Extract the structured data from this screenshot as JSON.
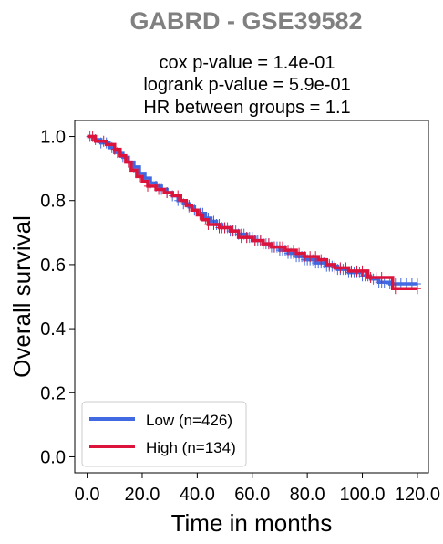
{
  "colors": {
    "title": "#808080",
    "text": "#000000",
    "low_series": "#4169E1",
    "high_series": "#DC143C",
    "axes": "#000000",
    "background": "#FFFFFF"
  },
  "chart_data": {
    "type": "line",
    "chart_kind": "kaplan-meier step plot with censor marks",
    "title": "GABRD - GSE39582",
    "subtitle_lines": [
      "cox p-value = 1.4e-01",
      "logrank p-value = 5.9e-01",
      "HR between groups = 1.1"
    ],
    "xlabel": "Time in months",
    "ylabel": "Overall survival",
    "xlim": [
      -4.5,
      124
    ],
    "ylim": [
      -0.05,
      1.05
    ],
    "xticks": [
      0,
      20,
      40,
      60,
      80,
      100,
      120
    ],
    "xtick_labels": [
      "0.0",
      "20.0",
      "40.0",
      "60.0",
      "80.0",
      "100.0",
      "120.0"
    ],
    "yticks": [
      0.0,
      0.2,
      0.4,
      0.6,
      0.8,
      1.0
    ],
    "ytick_labels": [
      "0.0",
      "0.2",
      "0.4",
      "0.6",
      "0.8",
      "1.0"
    ],
    "grid": false,
    "legend_position": "lower-left",
    "series": [
      {
        "name": "Low (n=426)",
        "color": "#4169E1",
        "step_points": [
          [
            0,
            1.0
          ],
          [
            2,
            0.99
          ],
          [
            5,
            0.98
          ],
          [
            8,
            0.965
          ],
          [
            10,
            0.95
          ],
          [
            13,
            0.935
          ],
          [
            15,
            0.92
          ],
          [
            17,
            0.905
          ],
          [
            19,
            0.885
          ],
          [
            21,
            0.87
          ],
          [
            23,
            0.855
          ],
          [
            25,
            0.845
          ],
          [
            27,
            0.835
          ],
          [
            29,
            0.825
          ],
          [
            31,
            0.815
          ],
          [
            33,
            0.8
          ],
          [
            35,
            0.79
          ],
          [
            37,
            0.78
          ],
          [
            39,
            0.77
          ],
          [
            41,
            0.76
          ],
          [
            43,
            0.745
          ],
          [
            45,
            0.735
          ],
          [
            47,
            0.725
          ],
          [
            49,
            0.715
          ],
          [
            52,
            0.705
          ],
          [
            55,
            0.695
          ],
          [
            58,
            0.685
          ],
          [
            61,
            0.675
          ],
          [
            64,
            0.665
          ],
          [
            67,
            0.655
          ],
          [
            70,
            0.645
          ],
          [
            73,
            0.635
          ],
          [
            76,
            0.625
          ],
          [
            79,
            0.615
          ],
          [
            83,
            0.605
          ],
          [
            87,
            0.595
          ],
          [
            91,
            0.585
          ],
          [
            95,
            0.575
          ],
          [
            100,
            0.565
          ],
          [
            103,
            0.555
          ],
          [
            106,
            0.545
          ],
          [
            110,
            0.54
          ],
          [
            120,
            0.54
          ]
        ],
        "censor_times": [
          1,
          3,
          5,
          7,
          9,
          11,
          13,
          15,
          17,
          19,
          21,
          23,
          25,
          27,
          29,
          31,
          33,
          35,
          37,
          39,
          41,
          42,
          43,
          44,
          45,
          46,
          47,
          48,
          49,
          50,
          51,
          52,
          53,
          54,
          55,
          56,
          57,
          58,
          59,
          60,
          61,
          62,
          63,
          64,
          65,
          66,
          67,
          68,
          69,
          70,
          71,
          72,
          73,
          74,
          75,
          76,
          77,
          78,
          79,
          80,
          81,
          82,
          83,
          84,
          85,
          86,
          87,
          88,
          89,
          90,
          91,
          92,
          93,
          94,
          95,
          96,
          97,
          98,
          99,
          100,
          101,
          102,
          104,
          105,
          106,
          107,
          108,
          110,
          112,
          114,
          116,
          118,
          120
        ]
      },
      {
        "name": "High (n=134)",
        "color": "#DC143C",
        "step_points": [
          [
            0,
            1.0
          ],
          [
            3,
            0.985
          ],
          [
            7,
            0.975
          ],
          [
            10,
            0.96
          ],
          [
            12,
            0.94
          ],
          [
            14,
            0.92
          ],
          [
            16,
            0.895
          ],
          [
            18,
            0.875
          ],
          [
            20,
            0.86
          ],
          [
            22,
            0.845
          ],
          [
            25,
            0.835
          ],
          [
            28,
            0.825
          ],
          [
            31,
            0.815
          ],
          [
            34,
            0.8
          ],
          [
            36,
            0.785
          ],
          [
            38,
            0.77
          ],
          [
            40,
            0.755
          ],
          [
            42,
            0.74
          ],
          [
            44,
            0.725
          ],
          [
            48,
            0.715
          ],
          [
            52,
            0.705
          ],
          [
            55,
            0.685
          ],
          [
            60,
            0.675
          ],
          [
            64,
            0.665
          ],
          [
            67,
            0.655
          ],
          [
            72,
            0.645
          ],
          [
            76,
            0.635
          ],
          [
            79,
            0.625
          ],
          [
            84,
            0.615
          ],
          [
            87,
            0.6
          ],
          [
            90,
            0.59
          ],
          [
            95,
            0.58
          ],
          [
            100,
            0.58
          ],
          [
            102,
            0.56
          ],
          [
            111,
            0.525
          ],
          [
            120,
            0.525
          ]
        ],
        "censor_times": [
          2,
          6,
          10,
          15,
          19,
          22,
          26,
          29,
          33,
          37,
          41,
          44,
          46,
          48,
          50,
          53,
          56,
          58,
          61,
          63,
          66,
          68,
          70,
          71,
          73,
          75,
          77,
          79,
          81,
          83,
          85,
          88,
          90,
          92,
          94,
          96,
          98,
          100,
          103,
          105,
          107,
          112,
          120
        ]
      }
    ]
  }
}
